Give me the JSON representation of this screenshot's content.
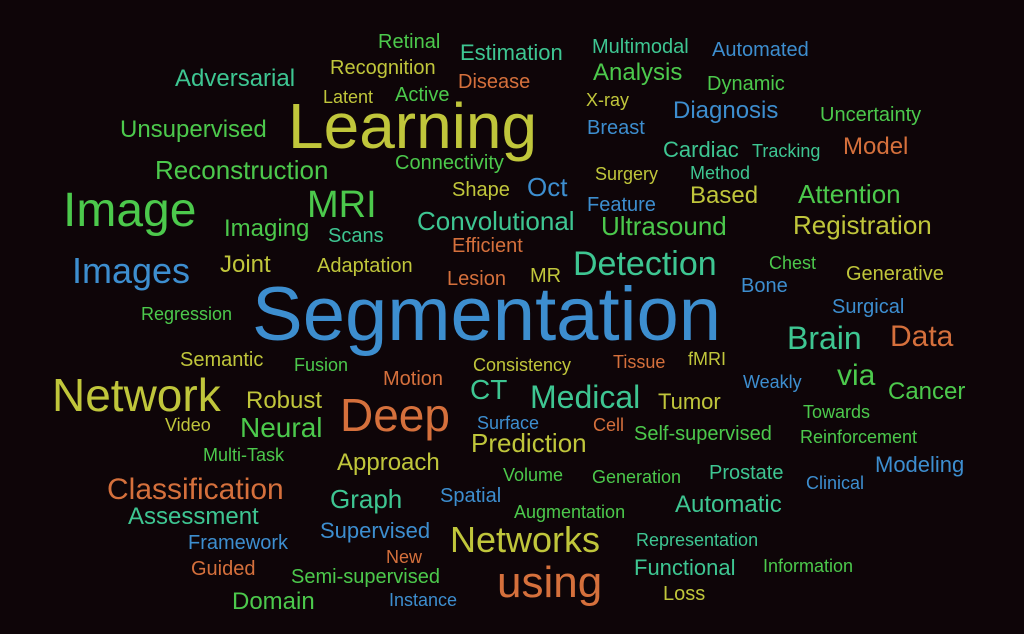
{
  "words": [
    "Retinal",
    "Estimation",
    "Multimodal",
    "Automated",
    "Adversarial",
    "Recognition",
    "Disease",
    "Analysis",
    "Dynamic",
    "Latent",
    "Active",
    "X-ray",
    "Learning",
    "Diagnosis",
    "Uncertainty",
    "Unsupervised",
    "Breast",
    "Model",
    "Cardiac",
    "Tracking",
    "Reconstruction",
    "Connectivity",
    "Surgery",
    "Method",
    "Image",
    "Shape",
    "Oct",
    "MRI",
    "Based",
    "Attention",
    "Feature",
    "Imaging",
    "Scans",
    "Convolutional",
    "Ultrasound",
    "Registration",
    "Efficient",
    "Images",
    "Joint",
    "Adaptation",
    "Detection",
    "Chest",
    "Generative",
    "Lesion",
    "MR",
    "Bone",
    "Segmentation",
    "Regression",
    "Surgical",
    "Brain",
    "Data",
    "Semantic",
    "Fusion",
    "Consistency",
    "Tissue",
    "fMRI",
    "via",
    "Network",
    "Motion",
    "CT",
    "Medical",
    "Weakly",
    "Cancer",
    "Robust",
    "Deep",
    "Tumor",
    "Towards",
    "Video",
    "Neural",
    "Surface",
    "Cell",
    "Self-supervised",
    "Reinforcement",
    "Prediction",
    "Multi-Task",
    "Approach",
    "Modeling",
    "Volume",
    "Generation",
    "Prostate",
    "Clinical",
    "Classification",
    "Graph",
    "Spatial",
    "Automatic",
    "Assessment",
    "Augmentation",
    "Supervised",
    "Networks",
    "Representation",
    "Framework",
    "New",
    "Information",
    "Guided",
    "Semi-supervised",
    "using",
    "Functional",
    "Domain",
    "Instance",
    "Loss"
  ]
}
